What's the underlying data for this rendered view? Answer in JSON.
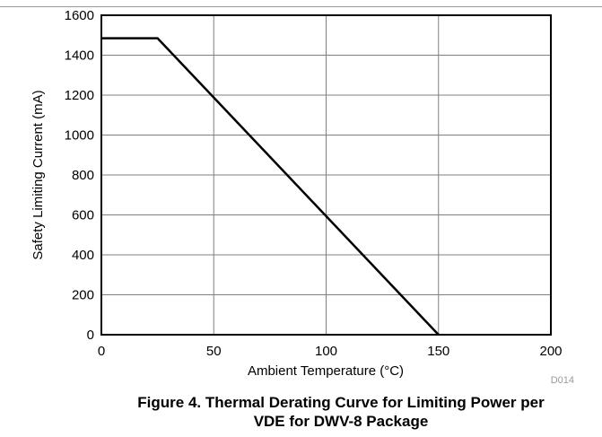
{
  "chart_data": {
    "type": "line",
    "xlabel": "Ambient Temperature (°C)",
    "ylabel": "Safety Limiting Current (mA)",
    "xlim": [
      0,
      200
    ],
    "ylim": [
      0,
      1600
    ],
    "x_ticks": [
      0,
      50,
      100,
      150,
      200
    ],
    "y_ticks": [
      0,
      200,
      400,
      600,
      800,
      1000,
      1200,
      1400,
      1600
    ],
    "grid": true,
    "series": [
      {
        "x": [
          0,
          25,
          150
        ],
        "y": [
          1485,
          1485,
          0
        ],
        "color": "#000000"
      }
    ],
    "figure_code": "D014"
  },
  "caption": {
    "line1": "Figure 4. Thermal Derating Curve for Limiting Power per",
    "line2": "VDE for DWV-8 Package"
  }
}
